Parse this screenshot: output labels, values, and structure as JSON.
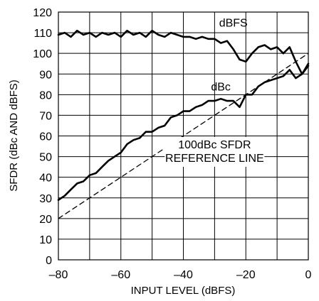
{
  "chart_data": {
    "type": "line",
    "title": "",
    "xlabel": "INPUT LEVEL (dBFS)",
    "ylabel": "SFDR (dBc AND dBFS)",
    "xlim": [
      -80,
      0
    ],
    "ylim": [
      0,
      120
    ],
    "xticks": [
      -80,
      -60,
      -40,
      -20,
      0
    ],
    "xtick_labels": [
      "–80",
      "–60",
      "–40",
      "–20",
      "0"
    ],
    "yticks": [
      0,
      10,
      20,
      30,
      40,
      50,
      60,
      70,
      80,
      90,
      100,
      110,
      120
    ],
    "ytick_labels": [
      "0",
      "10",
      "20",
      "30",
      "40",
      "50",
      "60",
      "70",
      "80",
      "90",
      "100",
      "110",
      "120"
    ],
    "grid": true,
    "legend": "none",
    "series": [
      {
        "name": "dBFS",
        "style": "solid",
        "x": [
          -80,
          -78,
          -76,
          -74,
          -72,
          -70,
          -68,
          -66,
          -64,
          -62,
          -60,
          -58,
          -56,
          -54,
          -52,
          -50,
          -48,
          -46,
          -44,
          -42,
          -40,
          -38,
          -36,
          -34,
          -32,
          -30,
          -28,
          -26,
          -24,
          -22,
          -20,
          -18,
          -16,
          -14,
          -12,
          -10,
          -8,
          -6,
          -4,
          -2,
          0
        ],
        "y": [
          109,
          110,
          108,
          111,
          109,
          110,
          108,
          110,
          109,
          110,
          108,
          111,
          109,
          110,
          108,
          111,
          109,
          108,
          110,
          109,
          108,
          108,
          107,
          108,
          107,
          107,
          105,
          106,
          102,
          97,
          96,
          100,
          103,
          104,
          102,
          103,
          100,
          103,
          96,
          90,
          95
        ]
      },
      {
        "name": "dBc",
        "style": "solid",
        "x": [
          -80,
          -78,
          -76,
          -74,
          -72,
          -70,
          -68,
          -66,
          -64,
          -62,
          -60,
          -58,
          -56,
          -54,
          -52,
          -50,
          -48,
          -46,
          -44,
          -42,
          -40,
          -38,
          -36,
          -34,
          -32,
          -30,
          -28,
          -26,
          -24,
          -22,
          -20,
          -18,
          -16,
          -14,
          -12,
          -10,
          -8,
          -6,
          -4,
          -2,
          0
        ],
        "y": [
          29,
          31,
          34,
          37,
          38,
          41,
          42,
          45,
          48,
          50,
          52,
          56,
          58,
          59,
          62,
          62,
          64,
          65,
          69,
          70,
          72,
          72,
          74,
          75,
          77,
          77,
          78,
          77,
          77,
          74,
          80,
          80,
          84,
          86,
          87,
          88,
          89,
          92,
          88,
          90,
          94
        ]
      },
      {
        "name": "100dBc SFDR REFERENCE LINE",
        "style": "dashed",
        "x": [
          -80,
          0
        ],
        "y": [
          20,
          100
        ]
      }
    ],
    "annotations": [
      {
        "text": "dBFS",
        "x": -24,
        "y": 113
      },
      {
        "text": "dBc",
        "x": -28,
        "y": 82
      },
      {
        "text_lines": [
          "100dBc SFDR",
          "REFERENCE LINE"
        ],
        "x": -30,
        "y": 54
      }
    ]
  }
}
